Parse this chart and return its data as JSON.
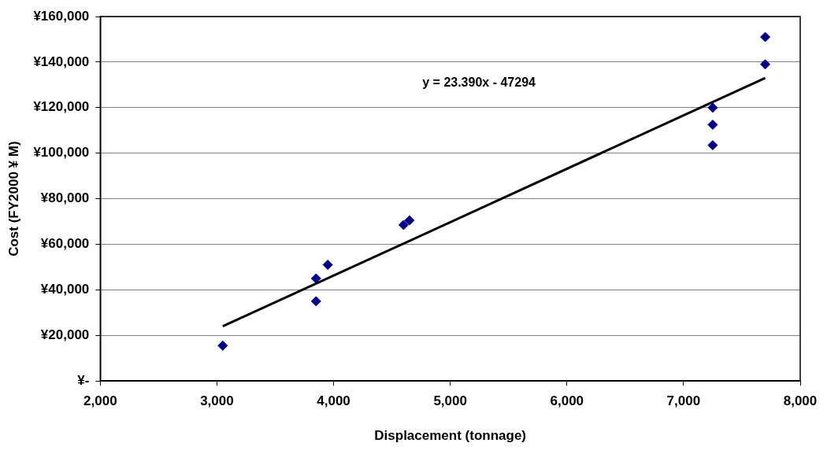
{
  "chart_data": {
    "type": "scatter",
    "xlabel": "Displacement (tonnage)",
    "ylabel": "Cost (FY2000 ¥ M)",
    "xlim": [
      2000,
      8000
    ],
    "xticks": [
      {
        "value": 2000,
        "label": "2,000"
      },
      {
        "value": 3000,
        "label": "3,000"
      },
      {
        "value": 4000,
        "label": "4,000"
      },
      {
        "value": 5000,
        "label": "5,000"
      },
      {
        "value": 6000,
        "label": "6,000"
      },
      {
        "value": 7000,
        "label": "7,000"
      },
      {
        "value": 8000,
        "label": "8,000"
      }
    ],
    "ylim": [
      0,
      160000
    ],
    "yticks": [
      {
        "value": 0,
        "label": "¥-"
      },
      {
        "value": 20000,
        "label": "¥20,000"
      },
      {
        "value": 40000,
        "label": "¥40,000"
      },
      {
        "value": 60000,
        "label": "¥60,000"
      },
      {
        "value": 80000,
        "label": "¥80,000"
      },
      {
        "value": 100000,
        "label": "¥100,000"
      },
      {
        "value": 120000,
        "label": "¥120,000"
      },
      {
        "value": 140000,
        "label": "¥140,000"
      },
      {
        "value": 160000,
        "label": "¥160,000"
      }
    ],
    "grid": "y",
    "marker": "diamond",
    "series": [
      {
        "color": "#000080",
        "x": [
          3050,
          3850,
          3850,
          3950,
          4600,
          4650,
          7250,
          7250,
          7250,
          7700,
          7700
        ],
        "values": [
          15500,
          35000,
          45000,
          51000,
          68500,
          70500,
          103500,
          112500,
          120000,
          139000,
          151000
        ]
      },
      {
        "type": "line",
        "color": "#000000",
        "marker": "none",
        "x": [
          3050,
          7700
        ],
        "values": [
          24000,
          133000
        ]
      }
    ],
    "annotations": [
      "y = 23.390x - 47294"
    ]
  }
}
